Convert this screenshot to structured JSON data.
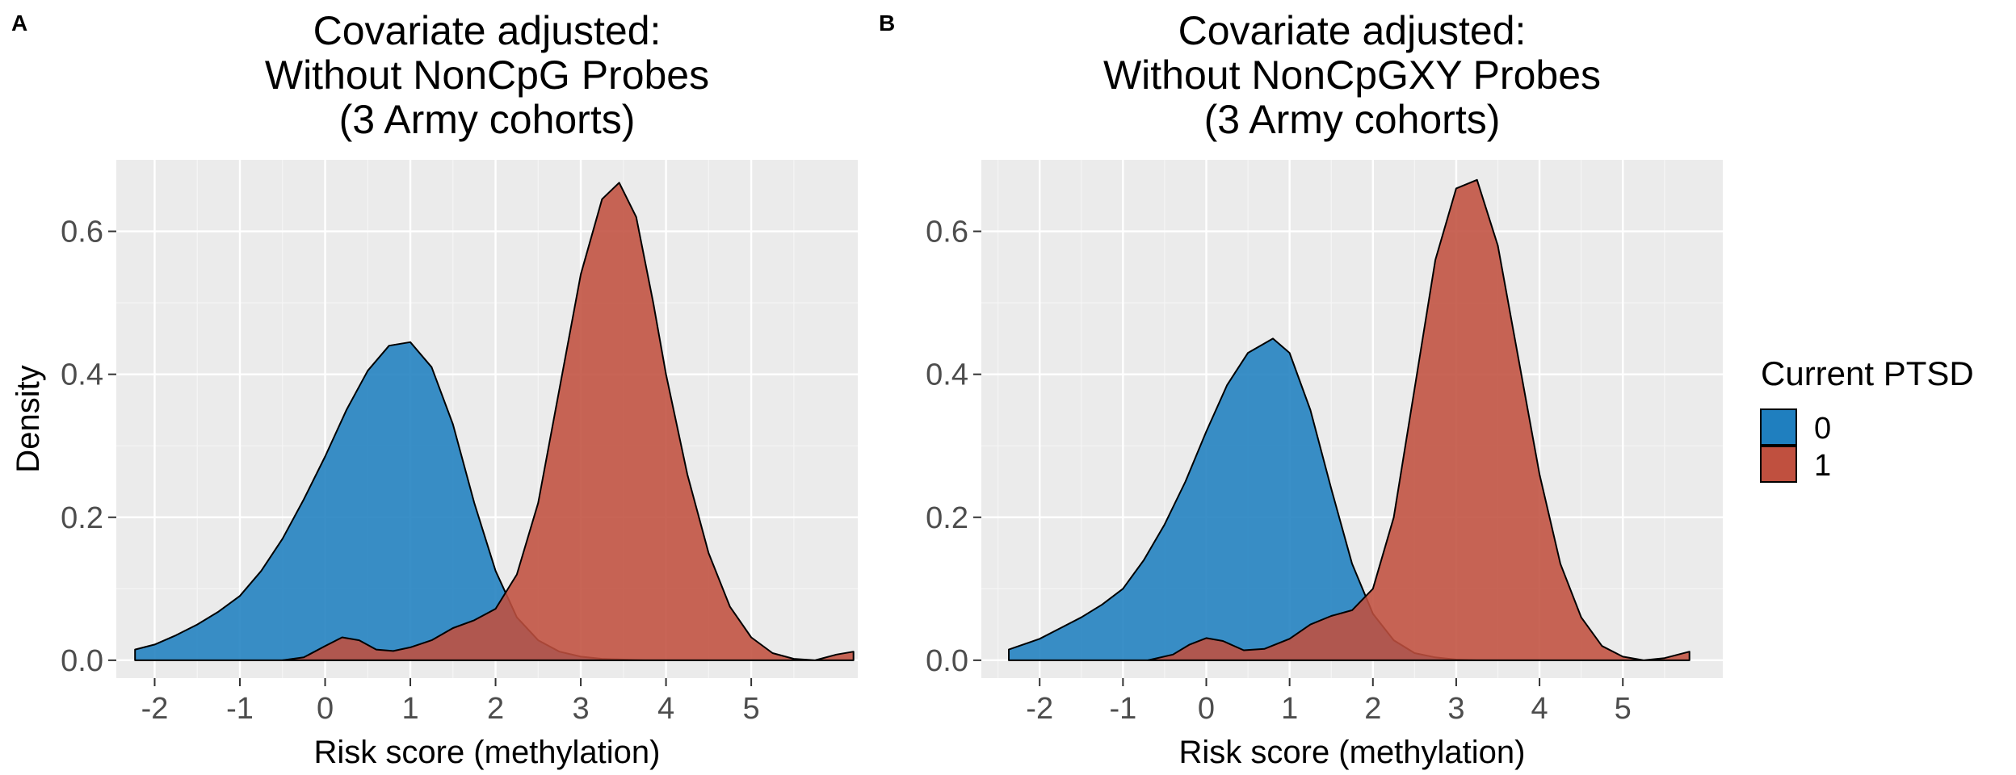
{
  "chart_data": [
    {
      "panel_label": "A",
      "type": "area",
      "title": "Covariate adjusted:\nWithout NonCpG Probes\n(3 Army cohorts)",
      "xlabel": "Risk score (methylation)",
      "ylabel": "Density",
      "xlim": [
        -2.45,
        6.25
      ],
      "ylim": [
        -0.025,
        0.7
      ],
      "xticks": [
        -2,
        -1,
        0,
        1,
        2,
        3,
        4,
        5
      ],
      "yticks": [
        0.0,
        0.2,
        0.4,
        0.6
      ],
      "ytick_labels": [
        "0.0",
        "0.2",
        "0.4",
        "0.6"
      ],
      "grid": true,
      "series": [
        {
          "name": "0",
          "color": "#1f7fbf",
          "x": [
            -2.23,
            -2.0,
            -1.75,
            -1.5,
            -1.25,
            -1.0,
            -0.75,
            -0.5,
            -0.25,
            0.0,
            0.25,
            0.5,
            0.75,
            1.0,
            1.25,
            1.5,
            1.75,
            2.0,
            2.25,
            2.5,
            2.75,
            3.0,
            3.25,
            3.5,
            3.75,
            4.0,
            4.25,
            4.5
          ],
          "values": [
            0.015,
            0.022,
            0.035,
            0.05,
            0.068,
            0.09,
            0.125,
            0.17,
            0.225,
            0.285,
            0.35,
            0.405,
            0.44,
            0.445,
            0.41,
            0.33,
            0.22,
            0.125,
            0.06,
            0.028,
            0.012,
            0.005,
            0.002,
            0.001,
            0.0,
            0.0,
            0.0,
            0.0
          ]
        },
        {
          "name": "1",
          "color": "#c0503f",
          "x": [
            -0.5,
            -0.25,
            0.0,
            0.2,
            0.4,
            0.6,
            0.8,
            1.0,
            1.25,
            1.5,
            1.75,
            2.0,
            2.25,
            2.5,
            2.75,
            3.0,
            3.25,
            3.45,
            3.65,
            3.85,
            4.0,
            4.25,
            4.5,
            4.75,
            5.0,
            5.25,
            5.5,
            5.75,
            6.0,
            6.2
          ],
          "values": [
            0.0,
            0.004,
            0.02,
            0.032,
            0.028,
            0.015,
            0.013,
            0.018,
            0.028,
            0.045,
            0.056,
            0.072,
            0.12,
            0.22,
            0.38,
            0.54,
            0.645,
            0.668,
            0.62,
            0.5,
            0.4,
            0.26,
            0.15,
            0.075,
            0.032,
            0.01,
            0.002,
            0.0,
            0.008,
            0.012
          ]
        }
      ]
    },
    {
      "panel_label": "B",
      "type": "area",
      "title": "Covariate adjusted:\nWithout NonCpGXY Probes\n(3 Army cohorts)",
      "xlabel": "Risk score (methylation)",
      "ylabel": "",
      "xlim": [
        -2.7,
        6.2
      ],
      "ylim": [
        -0.025,
        0.7
      ],
      "xticks": [
        -2,
        -1,
        0,
        1,
        2,
        3,
        4,
        5
      ],
      "yticks": [
        0.0,
        0.2,
        0.4,
        0.6
      ],
      "ytick_labels": [
        "0.0",
        "0.2",
        "0.4",
        "0.6"
      ],
      "grid": true,
      "series": [
        {
          "name": "0",
          "color": "#1f7fbf",
          "x": [
            -2.37,
            -2.0,
            -1.75,
            -1.5,
            -1.25,
            -1.0,
            -0.75,
            -0.5,
            -0.25,
            0.0,
            0.25,
            0.5,
            0.8,
            1.0,
            1.25,
            1.5,
            1.75,
            2.0,
            2.25,
            2.5,
            2.75,
            3.0,
            3.25,
            3.5,
            4.0
          ],
          "values": [
            0.015,
            0.03,
            0.045,
            0.06,
            0.078,
            0.1,
            0.14,
            0.19,
            0.25,
            0.32,
            0.385,
            0.43,
            0.45,
            0.43,
            0.35,
            0.24,
            0.135,
            0.065,
            0.028,
            0.01,
            0.004,
            0.001,
            0.0,
            0.0,
            0.0
          ]
        },
        {
          "name": "1",
          "color": "#c0503f",
          "x": [
            -0.7,
            -0.4,
            -0.2,
            0.0,
            0.2,
            0.45,
            0.7,
            1.0,
            1.25,
            1.5,
            1.75,
            2.0,
            2.25,
            2.5,
            2.75,
            3.0,
            3.25,
            3.5,
            3.75,
            4.0,
            4.25,
            4.5,
            4.75,
            5.0,
            5.25,
            5.5,
            5.8
          ],
          "values": [
            0.0,
            0.008,
            0.022,
            0.031,
            0.027,
            0.014,
            0.016,
            0.03,
            0.05,
            0.062,
            0.07,
            0.1,
            0.2,
            0.38,
            0.56,
            0.66,
            0.672,
            0.58,
            0.42,
            0.26,
            0.135,
            0.06,
            0.02,
            0.005,
            0.0,
            0.003,
            0.012
          ]
        }
      ]
    }
  ],
  "legend": {
    "title": "Current PTSD",
    "placement": "right",
    "items": [
      {
        "label": "0",
        "color": "#1f7fbf"
      },
      {
        "label": "1",
        "color": "#c0503f"
      }
    ]
  },
  "colors": {
    "panel_background": "#ebebeb",
    "grid_major": "#ffffff",
    "grid_minor": "#f5f5f5",
    "outline": "#000000"
  }
}
